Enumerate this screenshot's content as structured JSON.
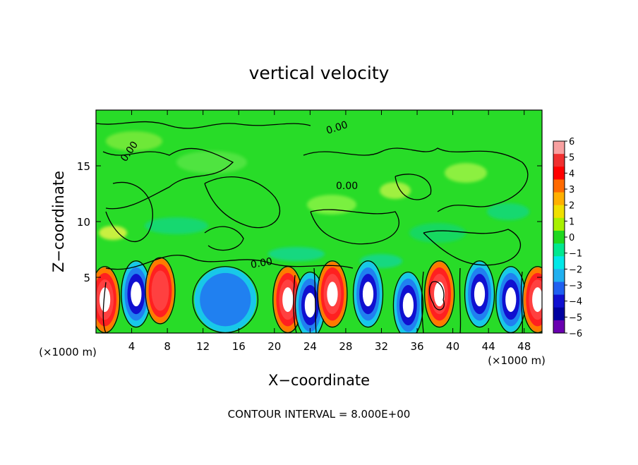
{
  "chart_data": {
    "type": "heatmap",
    "title": "vertical velocity",
    "xlabel": "X−coordinate",
    "ylabel": "Z−coordinate",
    "x_unit_note": "(×1000 m)",
    "y_unit_note": "(×1000 m)",
    "xlim": [
      0,
      50
    ],
    "ylim": [
      0,
      20
    ],
    "x_ticks": [
      "4",
      "8",
      "12",
      "16",
      "20",
      "24",
      "28",
      "32",
      "36",
      "40",
      "44",
      "48"
    ],
    "y_ticks": [
      "5",
      "10",
      "15"
    ],
    "footer": "CONTOUR INTERVAL = 8.000E+00",
    "contour_label": "0.00",
    "colorbar": {
      "ticks": [
        "6",
        "5",
        "4",
        "3",
        "2",
        "1",
        "0",
        "−1",
        "−2",
        "−3",
        "−4",
        "−5",
        "−6"
      ],
      "range": [
        -6,
        6
      ],
      "colors": [
        "#f8a0a0",
        "#f03030",
        "#ff0000",
        "#ff6a00",
        "#ffb000",
        "#f0e000",
        "#a8f000",
        "#20d820",
        "#00e890",
        "#00e8e8",
        "#20b0f0",
        "#2060f0",
        "#1010d0",
        "#0000a0",
        "#6a00b0"
      ]
    },
    "features": [
      {
        "kind": "updraft",
        "x": 1,
        "z": 3,
        "level": 6
      },
      {
        "kind": "downdraft",
        "x": 4.5,
        "z": 3.5,
        "level": -6
      },
      {
        "kind": "updraft",
        "x": 7.2,
        "z": 3.8,
        "level": 5
      },
      {
        "kind": "downdraft",
        "x": 14.5,
        "z": 3,
        "level": -4
      },
      {
        "kind": "updraft",
        "x": 21.5,
        "z": 3,
        "level": 6
      },
      {
        "kind": "downdraft",
        "x": 24,
        "z": 2.5,
        "level": -6
      },
      {
        "kind": "updraft",
        "x": 26.5,
        "z": 3.5,
        "level": 6
      },
      {
        "kind": "downdraft",
        "x": 30.5,
        "z": 3.5,
        "level": -6
      },
      {
        "kind": "downdraft",
        "x": 35,
        "z": 2.5,
        "level": -6
      },
      {
        "kind": "updraft",
        "x": 38.5,
        "z": 3.5,
        "level": 6
      },
      {
        "kind": "downdraft",
        "x": 43,
        "z": 3.5,
        "level": -6
      },
      {
        "kind": "downdraft",
        "x": 46.5,
        "z": 3,
        "level": -6
      },
      {
        "kind": "updraft",
        "x": 49.5,
        "z": 3,
        "level": 6
      }
    ],
    "grid": false,
    "legend": "colorbar-right"
  }
}
